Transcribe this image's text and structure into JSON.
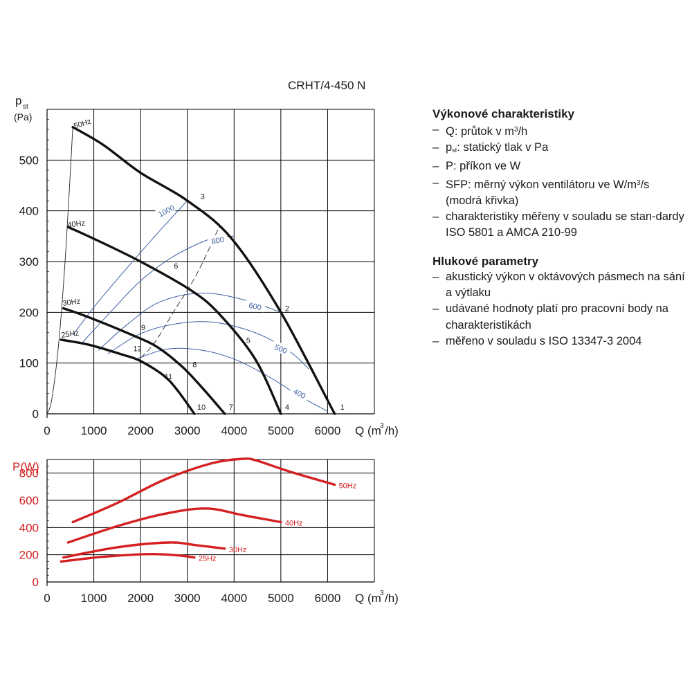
{
  "model": "CRHT/4-450 N",
  "chart_data": [
    {
      "type": "line",
      "ylabel": "p",
      "ylabel_sub": "st",
      "ylabel_unit": "(Pa)",
      "xlabel": "Q (m",
      "xlabel_sup": "3",
      "xlabel_end": "/h)",
      "xlim": [
        0,
        7000
      ],
      "ylim": [
        0,
        600
      ],
      "xticks": [
        0,
        1000,
        2000,
        3000,
        4000,
        5000,
        6000
      ],
      "yticks": [
        0,
        100,
        200,
        300,
        400,
        500
      ],
      "grid": true,
      "fan_curves": [
        {
          "name": "50Hz",
          "points": [
            [
              550,
              565
            ],
            [
              1200,
              530
            ],
            [
              2000,
              475
            ],
            [
              3000,
              420
            ],
            [
              3950,
              345
            ],
            [
              5000,
              200
            ],
            [
              6150,
              0
            ]
          ]
        },
        {
          "name": "40Hz",
          "points": [
            [
              450,
              368
            ],
            [
              1000,
              345
            ],
            [
              2000,
              300
            ],
            [
              3100,
              242
            ],
            [
              3700,
              195
            ],
            [
              4450,
              108
            ],
            [
              5000,
              0
            ]
          ]
        },
        {
          "name": "30Hz",
          "points": [
            [
              350,
              208
            ],
            [
              900,
              190
            ],
            [
              1800,
              156
            ],
            [
              2350,
              132
            ],
            [
              2900,
              92
            ],
            [
              3350,
              48
            ],
            [
              3800,
              0
            ]
          ]
        },
        {
          "name": "25Hz",
          "points": [
            [
              300,
              146
            ],
            [
              900,
              136
            ],
            [
              1600,
              117
            ],
            [
              2000,
              104
            ],
            [
              2500,
              75
            ],
            [
              2800,
              45
            ],
            [
              3150,
              0
            ]
          ]
        }
      ],
      "sfp_curves": [
        {
          "name": "1000",
          "points": [
            [
              550,
              155
            ],
            [
              1000,
              210
            ],
            [
              1500,
              265
            ],
            [
              2000,
              318
            ],
            [
              2500,
              370
            ],
            [
              3000,
              420
            ]
          ]
        },
        {
          "name": "800",
          "points": [
            [
              750,
              140
            ],
            [
              1400,
              205
            ],
            [
              2000,
              262
            ],
            [
              2700,
              310
            ],
            [
              3500,
              345
            ],
            [
              4000,
              350
            ]
          ]
        },
        {
          "name": "600",
          "points": [
            [
              1100,
              125
            ],
            [
              1700,
              175
            ],
            [
              2400,
              220
            ],
            [
              3300,
              238
            ],
            [
              4200,
              225
            ],
            [
              5000,
              200
            ]
          ]
        },
        {
          "name": "500",
          "points": [
            [
              1300,
              118
            ],
            [
              2000,
              158
            ],
            [
              2800,
              178
            ],
            [
              3600,
              180
            ],
            [
              4500,
              158
            ],
            [
              5200,
              122
            ],
            [
              5600,
              88
            ]
          ]
        },
        {
          "name": "400",
          "points": [
            [
              1900,
              108
            ],
            [
              2600,
              128
            ],
            [
              3400,
              124
            ],
            [
              4100,
              104
            ],
            [
              4800,
              70
            ],
            [
              5400,
              35
            ],
            [
              6000,
              5
            ]
          ]
        }
      ],
      "system_curves": [
        {
          "points": [
            [
              0,
              0
            ],
            [
              100,
              28
            ],
            [
              250,
              140
            ],
            [
              400,
              320
            ],
            [
              550,
              565
            ]
          ]
        },
        {
          "points": [
            [
              2000,
              110
            ],
            [
              2300,
              140
            ],
            [
              2700,
              200
            ],
            [
              3200,
              275
            ],
            [
              3700,
              372
            ]
          ]
        }
      ],
      "point_labels": [
        {
          "label": "1",
          "x": 6150,
          "y": 0
        },
        {
          "label": "2",
          "x": 5000,
          "y": 200
        },
        {
          "label": "3",
          "x": 3400,
          "y": 410
        },
        {
          "label": "4",
          "x": 5000,
          "y": 0
        },
        {
          "label": "5",
          "x": 4200,
          "y": 140
        },
        {
          "label": "6",
          "x": 2800,
          "y": 278
        },
        {
          "label": "7",
          "x": 3800,
          "y": 0
        },
        {
          "label": "8",
          "x": 3200,
          "y": 95
        },
        {
          "label": "9",
          "x": 2100,
          "y": 165
        },
        {
          "label": "10",
          "x": 3150,
          "y": 0
        },
        {
          "label": "11",
          "x": 2600,
          "y": 60
        },
        {
          "label": "12",
          "x": 1900,
          "y": 118
        }
      ]
    },
    {
      "type": "line",
      "ylabel": "P(W)",
      "xlabel": "Q (m",
      "xlabel_sup": "3",
      "xlabel_end": "/h)",
      "xlim": [
        0,
        7000
      ],
      "ylim": [
        0,
        900
      ],
      "xticks": [
        0,
        1000,
        2000,
        3000,
        4000,
        5000,
        6000
      ],
      "yticks": [
        0,
        200,
        400,
        600,
        800
      ],
      "grid": true,
      "series": [
        {
          "name": "50Hz",
          "points": [
            [
              550,
              440
            ],
            [
              1500,
              580
            ],
            [
              2500,
              750
            ],
            [
              3500,
              870
            ],
            [
              4200,
              905
            ],
            [
              4500,
              890
            ],
            [
              5200,
              810
            ],
            [
              6150,
              715
            ]
          ]
        },
        {
          "name": "40Hz",
          "points": [
            [
              450,
              290
            ],
            [
              1500,
              410
            ],
            [
              2500,
              500
            ],
            [
              3400,
              540
            ],
            [
              4200,
              490
            ],
            [
              5000,
              440
            ]
          ]
        },
        {
          "name": "30Hz",
          "points": [
            [
              350,
              180
            ],
            [
              1500,
              255
            ],
            [
              2600,
              290
            ],
            [
              3200,
              270
            ],
            [
              3800,
              245
            ]
          ]
        },
        {
          "name": "25Hz",
          "points": [
            [
              300,
              150
            ],
            [
              1200,
              185
            ],
            [
              2200,
              205
            ],
            [
              2800,
              195
            ],
            [
              3150,
              180
            ]
          ]
        }
      ]
    }
  ],
  "performance": {
    "title": "Výkonové charakteristiky",
    "items": [
      {
        "pre": "Q: průtok v m",
        "sup": "3",
        "post": "/h"
      },
      {
        "pre": "p",
        "sub": "st",
        "post": ": statický tlak v Pa"
      },
      {
        "pre": "P: příkon ve W"
      },
      {
        "pre": "SFP: měrný výkon ventilátoru ve W/m",
        "sup": "3",
        "post": "/s (modrá křivka)"
      },
      {
        "pre": "charakteristiky měřeny v souladu se stan-dardy ISO 5801 a AMCA 210-99"
      }
    ]
  },
  "noise": {
    "title": "Hlukové parametry",
    "items": [
      {
        "pre": "akustický výkon v oktávových pásmech na sání a výtlaku"
      },
      {
        "pre": "udávané hodnoty platí pro pracovní body na charakteristikách"
      },
      {
        "pre": "měřeno v souladu s ISO 13347-3 2004"
      }
    ]
  },
  "colors": {
    "fan": "#111111",
    "sfp": "#3a5fa0",
    "power": "#d42020",
    "grid": "#000000"
  }
}
